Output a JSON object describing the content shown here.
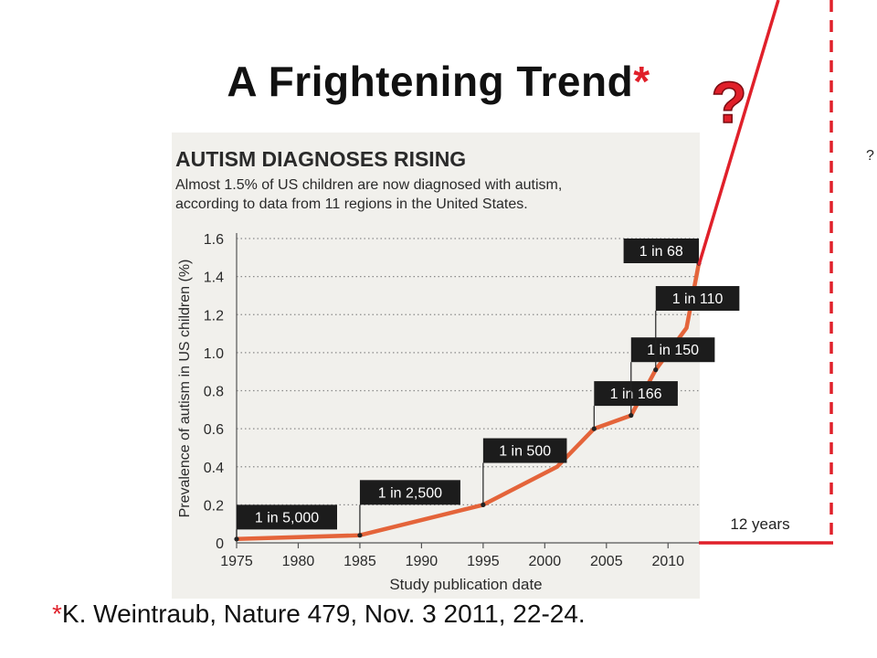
{
  "slide": {
    "title": "A Frightening Trend",
    "title_asterisk": "*",
    "question_mark": "?",
    "side_question_mark": "?",
    "years_label": "12 years",
    "citation_asterisk": "*",
    "citation": "K. Weintraub, Nature 479, Nov. 3 2011, 22-24.",
    "accent_color": "#e0202a"
  },
  "chart_data": {
    "type": "line",
    "title": "AUTISM DIAGNOSES RISING",
    "subtitle_lines": [
      "Almost 1.5% of US children are now diagnosed with autism,",
      "according to data from 11 regions in the United States."
    ],
    "xlabel": "Study publication date",
    "ylabel": "Prevalence of autism in US children (%)",
    "xlim": [
      1975,
      2012.5
    ],
    "ylim": [
      0,
      1.6
    ],
    "x_ticks": [
      1975,
      1980,
      1985,
      1990,
      1995,
      2000,
      2005,
      2010
    ],
    "y_ticks": [
      0,
      0.2,
      0.4,
      0.6,
      0.8,
      1.0,
      1.2,
      1.4,
      1.6
    ],
    "y_tick_labels": [
      "0",
      "0.2",
      "0.4",
      "0.6",
      "0.8",
      "1.0",
      "1.2",
      "1.4",
      "1.6"
    ],
    "grid": "horizontal dotted",
    "line_color": "#e4643a",
    "background": "#f1f0ec",
    "series": [
      {
        "x": [
          1975,
          1985,
          1995,
          2001,
          2004,
          2007,
          2009,
          2011.5,
          2012.5
        ],
        "y": [
          0.02,
          0.04,
          0.2,
          0.4,
          0.6,
          0.67,
          0.91,
          1.13,
          1.47
        ]
      }
    ],
    "annotations": [
      {
        "label": "1 in 5,000",
        "x": 1975,
        "y": 0.02,
        "box_y": 0.2
      },
      {
        "label": "1 in 2,500",
        "x": 1985,
        "y": 0.04,
        "box_y": 0.33
      },
      {
        "label": "1 in 500",
        "x": 1995,
        "y": 0.2,
        "box_y": 0.55
      },
      {
        "label": "1 in 166",
        "x": 2004,
        "y": 0.6,
        "box_y": 0.85
      },
      {
        "label": "1 in 150",
        "x": 2007,
        "y": 0.67,
        "box_y": 1.08
      },
      {
        "label": "1 in 110",
        "x": 2009,
        "y": 0.91,
        "box_y": 1.35
      },
      {
        "label": "1 in 68",
        "x": 2012.5,
        "y": 1.47,
        "box_y": 1.6
      }
    ]
  }
}
